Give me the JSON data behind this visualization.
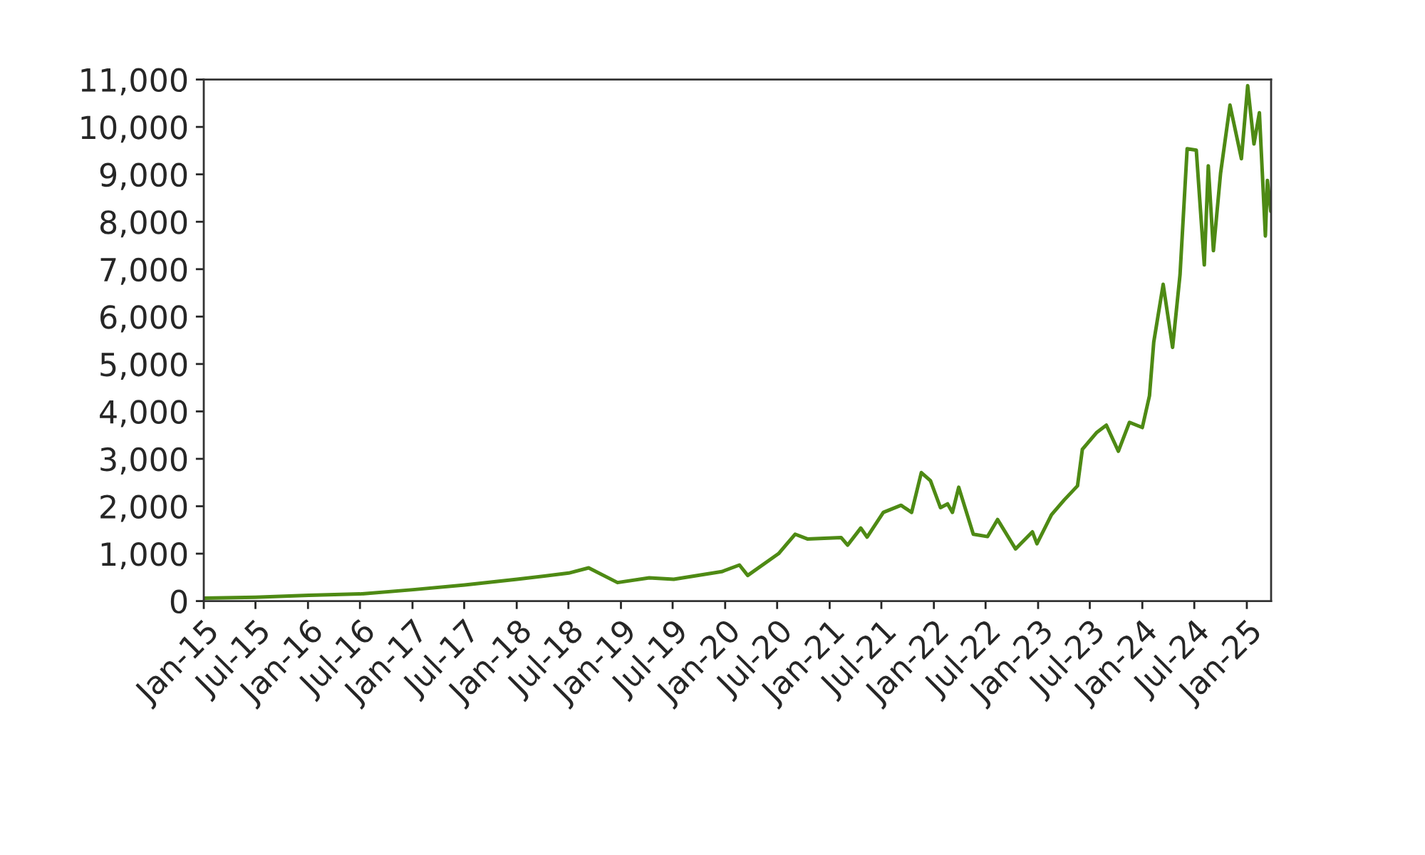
{
  "chart_data": {
    "type": "line",
    "grid": false,
    "xlim": [
      "2015-01-01",
      "2025-03-27"
    ],
    "ylim": [
      0,
      11000
    ],
    "yticks": [
      {
        "value": 0,
        "label": "0"
      },
      {
        "value": 1000,
        "label": "1,000"
      },
      {
        "value": 2000,
        "label": "2,000"
      },
      {
        "value": 3000,
        "label": "3,000"
      },
      {
        "value": 4000,
        "label": "4,000"
      },
      {
        "value": 5000,
        "label": "5,000"
      },
      {
        "value": 6000,
        "label": "6,000"
      },
      {
        "value": 7000,
        "label": "7,000"
      },
      {
        "value": 8000,
        "label": "8,000"
      },
      {
        "value": 9000,
        "label": "9,000"
      },
      {
        "value": 10000,
        "label": "10,000"
      },
      {
        "value": 11000,
        "label": "11,000"
      }
    ],
    "xticks": [
      {
        "value": "2015-01-01",
        "label": "Jan-15"
      },
      {
        "value": "2015-07-01",
        "label": "Jul-15"
      },
      {
        "value": "2016-01-01",
        "label": "Jan-16"
      },
      {
        "value": "2016-07-01",
        "label": "Jul-16"
      },
      {
        "value": "2017-01-01",
        "label": "Jan-17"
      },
      {
        "value": "2017-07-01",
        "label": "Jul-17"
      },
      {
        "value": "2018-01-01",
        "label": "Jan-18"
      },
      {
        "value": "2018-07-01",
        "label": "Jul-18"
      },
      {
        "value": "2019-01-01",
        "label": "Jan-19"
      },
      {
        "value": "2019-07-01",
        "label": "Jul-19"
      },
      {
        "value": "2020-01-01",
        "label": "Jan-20"
      },
      {
        "value": "2020-07-01",
        "label": "Jul-20"
      },
      {
        "value": "2021-01-01",
        "label": "Jan-21"
      },
      {
        "value": "2021-07-01",
        "label": "Jul-21"
      },
      {
        "value": "2022-01-01",
        "label": "Jan-22"
      },
      {
        "value": "2022-07-01",
        "label": "Jul-22"
      },
      {
        "value": "2023-01-01",
        "label": "Jan-23"
      },
      {
        "value": "2023-07-01",
        "label": "Jul-23"
      },
      {
        "value": "2024-01-01",
        "label": "Jan-24"
      },
      {
        "value": "2024-07-01",
        "label": "Jul-24"
      },
      {
        "value": "2025-01-01",
        "label": "Jan-25"
      }
    ],
    "marker": "none",
    "line_style": "solid",
    "series": [
      {
        "color": "#4e8a14",
        "x": [
          "2015-01-02",
          "2015-07-01",
          "2016-01-04",
          "2016-07-01",
          "2017-01-03",
          "2017-07-03",
          "2018-01-02",
          "2018-07-02",
          "2018-09-10",
          "2018-12-20",
          "2019-04-10",
          "2019-07-05",
          "2019-12-20",
          "2020-02-20",
          "2020-03-20",
          "2020-07-06",
          "2020-09-02",
          "2020-10-15",
          "2021-02-10",
          "2021-03-05",
          "2021-04-20",
          "2021-05-12",
          "2021-07-08",
          "2021-09-08",
          "2021-10-15",
          "2021-11-18",
          "2021-12-20",
          "2022-01-24",
          "2022-02-18",
          "2022-03-07",
          "2022-03-29",
          "2022-05-19",
          "2022-07-08",
          "2022-08-12",
          "2022-10-14",
          "2022-12-12",
          "2022-12-28",
          "2023-02-17",
          "2023-04-02",
          "2023-05-19",
          "2023-06-05",
          "2023-07-26",
          "2023-08-28",
          "2023-10-09",
          "2023-11-17",
          "2024-01-01",
          "2024-01-26",
          "2024-02-10",
          "2024-03-14",
          "2024-04-16",
          "2024-05-12",
          "2024-06-06",
          "2024-07-08",
          "2024-08-05",
          "2024-08-19",
          "2024-09-06",
          "2024-10-01",
          "2024-11-03",
          "2024-12-13",
          "2025-01-04",
          "2025-01-26",
          "2025-02-14",
          "2025-03-07",
          "2025-03-14",
          "2025-03-26"
        ],
        "values": [
          60,
          80,
          120,
          150,
          240,
          340,
          460,
          590,
          700,
          390,
          490,
          460,
          620,
          760,
          540,
          1000,
          1410,
          1310,
          1340,
          1180,
          1540,
          1350,
          1870,
          2020,
          1870,
          2710,
          2540,
          1970,
          2050,
          1870,
          2400,
          1410,
          1360,
          1720,
          1100,
          1460,
          1210,
          1820,
          2130,
          2430,
          3200,
          3560,
          3710,
          3160,
          3770,
          3660,
          4330,
          5460,
          6680,
          5350,
          6880,
          9540,
          9510,
          7090,
          9180,
          7390,
          9020,
          10460,
          9330,
          10870,
          9640,
          10300,
          7700,
          8870,
          8220
        ]
      }
    ]
  }
}
